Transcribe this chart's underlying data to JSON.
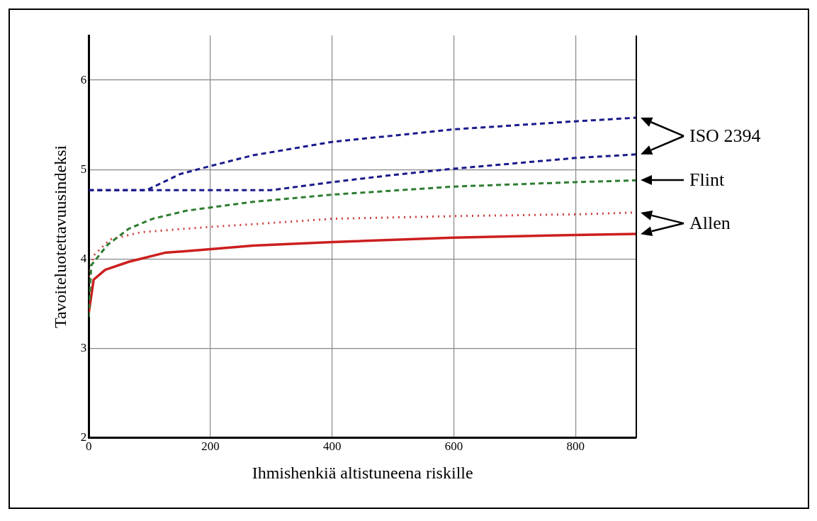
{
  "chart_data": {
    "type": "line",
    "xlabel": "Ihmishenkiä altistuneena riskille",
    "ylabel": "Tavoiteluotettavuusindeksi",
    "xlim": [
      0,
      900
    ],
    "xticks": [
      0,
      200,
      400,
      600,
      800
    ],
    "ylim": [
      2,
      6.5
    ],
    "yticks": [
      2,
      3,
      4,
      5,
      6
    ],
    "grid": true,
    "legend": false,
    "marker": "none",
    "series": [
      {
        "name": "ISO 2394",
        "color": "#1a1a8c",
        "line_style": "dashed",
        "x": [
          0,
          95,
          150,
          200,
          270,
          400,
          600,
          800,
          900
        ],
        "values": [
          4.77,
          4.77,
          4.95,
          5.04,
          5.16,
          5.31,
          5.45,
          5.54,
          5.58
        ]
      },
      {
        "color": "#1a1a8c",
        "line_style": "dashed",
        "x": [
          0,
          300,
          400,
          500,
          600,
          800,
          900
        ],
        "values": [
          4.77,
          4.77,
          4.86,
          4.94,
          5.01,
          5.13,
          5.17
        ]
      },
      {
        "name": "Flint",
        "color": "#2e7d32",
        "line_style": "dashed",
        "x": [
          0,
          4,
          31,
          66,
          105,
          160,
          270,
          400,
          600,
          800,
          900
        ],
        "values": [
          3.35,
          3.93,
          4.16,
          4.34,
          4.45,
          4.54,
          4.64,
          4.72,
          4.81,
          4.86,
          4.88
        ]
      },
      {
        "name": "Allen",
        "color": "#d04040",
        "line_style": "dotted",
        "x": [
          0,
          8,
          35,
          86,
          200,
          270,
          400,
          600,
          800,
          900
        ],
        "values": [
          3.8,
          4.04,
          4.22,
          4.3,
          4.36,
          4.39,
          4.45,
          4.48,
          4.5,
          4.52
        ]
      },
      {
        "color": "#cc1f1f",
        "line_style": "solid",
        "x": [
          0,
          8,
          27,
          66,
          125,
          200,
          270,
          400,
          600,
          800,
          900
        ],
        "values": [
          3.4,
          3.77,
          3.88,
          3.97,
          4.07,
          4.11,
          4.15,
          4.19,
          4.24,
          4.27,
          4.28
        ]
      }
    ]
  }
}
